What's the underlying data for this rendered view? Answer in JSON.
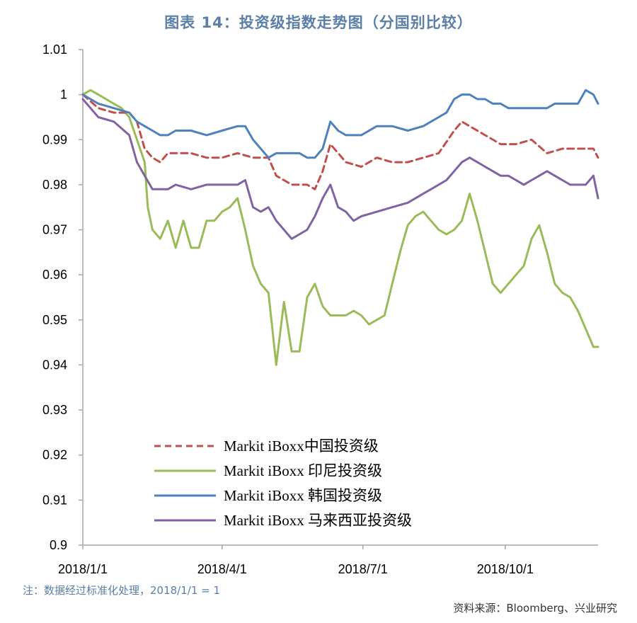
{
  "title": "图表 14：投资级指数走势图（分国别比较）",
  "note": "注：数据经过标准化处理，2018/1/1 = 1",
  "source": "资料来源：Bloomberg、兴业研究",
  "colors": {
    "china": "#c0504d",
    "indonesia": "#9bbb59",
    "korea": "#4f81bd",
    "malaysia": "#8064a2",
    "axis": "#a6a6a6"
  },
  "chart_data": {
    "type": "line",
    "title": "图表 14：投资级指数走势图（分国别比较）",
    "xlabel": "",
    "ylabel": "",
    "ylim": [
      0.9,
      1.01
    ],
    "yticks": [
      "0.9",
      "0.91",
      "0.92",
      "0.93",
      "0.94",
      "0.95",
      "0.96",
      "0.97",
      "0.98",
      "0.99",
      "1",
      "1.01"
    ],
    "xticks": [
      "2018/1/1",
      "2018/4/1",
      "2018/7/1",
      "2018/10/1"
    ],
    "x_range_days": [
      0,
      333
    ],
    "xtick_days": [
      0,
      90,
      181,
      273
    ],
    "legend_position": "bottom-left",
    "series": [
      {
        "name": "Markit iBoxx中国投资级",
        "style": "dashed",
        "x": [
          0,
          10,
          20,
          30,
          35,
          40,
          45,
          50,
          55,
          60,
          70,
          80,
          90,
          100,
          110,
          120,
          125,
          130,
          135,
          140,
          145,
          150,
          155,
          160,
          170,
          180,
          190,
          200,
          210,
          220,
          230,
          240,
          245,
          250,
          260,
          270,
          280,
          290,
          300,
          310,
          320,
          330,
          333
        ],
        "values": [
          1.0,
          0.997,
          0.996,
          0.996,
          0.994,
          0.988,
          0.986,
          0.985,
          0.987,
          0.987,
          0.987,
          0.986,
          0.986,
          0.987,
          0.986,
          0.986,
          0.982,
          0.981,
          0.98,
          0.98,
          0.98,
          0.979,
          0.983,
          0.989,
          0.985,
          0.984,
          0.986,
          0.985,
          0.985,
          0.986,
          0.987,
          0.992,
          0.994,
          0.993,
          0.991,
          0.989,
          0.989,
          0.99,
          0.987,
          0.988,
          0.988,
          0.988,
          0.986
        ]
      },
      {
        "name": "Markit iBoxx 印尼投资级",
        "style": "solid",
        "x": [
          0,
          5,
          10,
          15,
          20,
          25,
          30,
          35,
          40,
          42,
          45,
          50,
          55,
          60,
          65,
          70,
          75,
          80,
          85,
          90,
          95,
          100,
          105,
          110,
          115,
          120,
          125,
          130,
          135,
          140,
          145,
          150,
          155,
          160,
          165,
          170,
          175,
          180,
          185,
          190,
          195,
          200,
          205,
          210,
          215,
          220,
          225,
          230,
          235,
          240,
          245,
          250,
          255,
          260,
          265,
          270,
          275,
          280,
          285,
          290,
          295,
          300,
          305,
          310,
          315,
          320,
          325,
          330,
          333
        ],
        "values": [
          1.0,
          1.001,
          1.0,
          0.999,
          0.998,
          0.997,
          0.995,
          0.99,
          0.985,
          0.975,
          0.97,
          0.968,
          0.972,
          0.966,
          0.972,
          0.966,
          0.966,
          0.972,
          0.972,
          0.974,
          0.975,
          0.977,
          0.97,
          0.962,
          0.958,
          0.956,
          0.94,
          0.954,
          0.943,
          0.943,
          0.955,
          0.958,
          0.953,
          0.951,
          0.951,
          0.951,
          0.952,
          0.951,
          0.949,
          0.95,
          0.951,
          0.958,
          0.965,
          0.971,
          0.973,
          0.974,
          0.972,
          0.97,
          0.969,
          0.97,
          0.972,
          0.978,
          0.972,
          0.965,
          0.958,
          0.956,
          0.958,
          0.96,
          0.962,
          0.968,
          0.971,
          0.965,
          0.958,
          0.956,
          0.955,
          0.952,
          0.948,
          0.944,
          0.944
        ]
      },
      {
        "name": "Markit iBoxx 韩国投资级",
        "style": "solid",
        "x": [
          0,
          10,
          20,
          30,
          35,
          40,
          45,
          50,
          55,
          60,
          70,
          80,
          90,
          100,
          105,
          110,
          115,
          120,
          125,
          130,
          135,
          140,
          145,
          150,
          155,
          160,
          165,
          170,
          180,
          190,
          200,
          210,
          220,
          230,
          235,
          240,
          245,
          250,
          255,
          260,
          265,
          270,
          275,
          280,
          285,
          290,
          295,
          300,
          305,
          310,
          315,
          320,
          325,
          330,
          333
        ],
        "values": [
          1.0,
          0.998,
          0.997,
          0.996,
          0.994,
          0.993,
          0.992,
          0.991,
          0.991,
          0.992,
          0.992,
          0.991,
          0.992,
          0.993,
          0.993,
          0.99,
          0.988,
          0.986,
          0.987,
          0.987,
          0.987,
          0.987,
          0.986,
          0.986,
          0.988,
          0.994,
          0.992,
          0.991,
          0.991,
          0.993,
          0.993,
          0.992,
          0.993,
          0.995,
          0.996,
          0.999,
          1.0,
          1.0,
          0.999,
          0.999,
          0.998,
          0.998,
          0.997,
          0.997,
          0.997,
          0.997,
          0.997,
          0.997,
          0.998,
          0.998,
          0.998,
          0.998,
          1.001,
          1.0,
          0.998
        ]
      },
      {
        "name": "Markit iBoxx 马来西亚投资级",
        "style": "solid",
        "x": [
          0,
          10,
          20,
          30,
          35,
          40,
          45,
          50,
          55,
          60,
          70,
          80,
          90,
          100,
          105,
          110,
          115,
          120,
          125,
          130,
          135,
          140,
          145,
          150,
          155,
          160,
          165,
          170,
          175,
          180,
          190,
          200,
          210,
          220,
          225,
          230,
          235,
          240,
          245,
          250,
          255,
          260,
          265,
          270,
          275,
          280,
          285,
          290,
          295,
          300,
          305,
          310,
          315,
          320,
          325,
          330,
          333
        ],
        "values": [
          0.999,
          0.995,
          0.994,
          0.991,
          0.985,
          0.982,
          0.979,
          0.979,
          0.979,
          0.98,
          0.979,
          0.98,
          0.98,
          0.98,
          0.981,
          0.975,
          0.974,
          0.975,
          0.972,
          0.97,
          0.968,
          0.969,
          0.97,
          0.973,
          0.977,
          0.98,
          0.975,
          0.974,
          0.972,
          0.973,
          0.974,
          0.975,
          0.976,
          0.978,
          0.979,
          0.98,
          0.981,
          0.983,
          0.985,
          0.986,
          0.985,
          0.984,
          0.983,
          0.982,
          0.982,
          0.981,
          0.98,
          0.981,
          0.982,
          0.983,
          0.982,
          0.981,
          0.98,
          0.98,
          0.98,
          0.982,
          0.977
        ]
      }
    ]
  }
}
